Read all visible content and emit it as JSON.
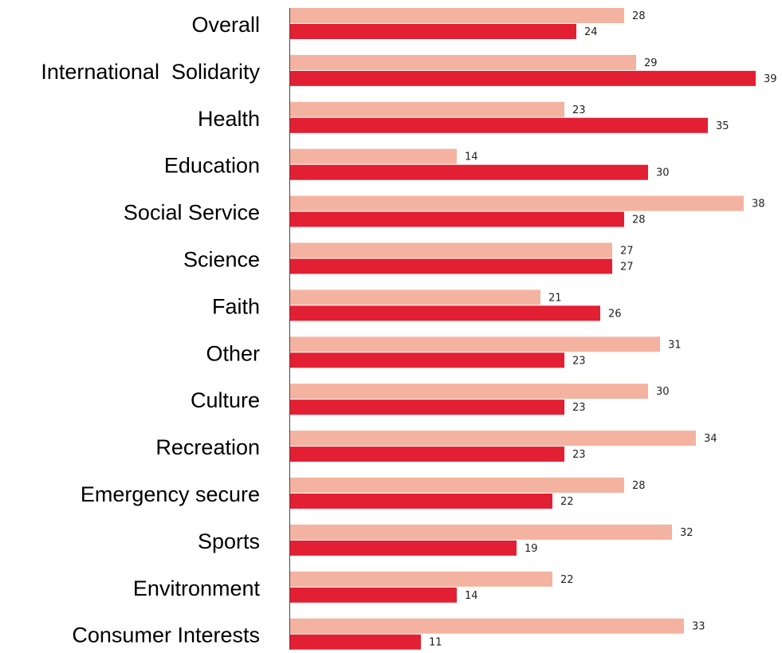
{
  "chart_data": {
    "type": "bar",
    "orientation": "horizontal",
    "categories": [
      "Overall",
      "International  Solidarity",
      "Health",
      "Education",
      "Social Service",
      "Science",
      "Faith",
      "Other",
      "Culture",
      "Recreation",
      "Emergency secure",
      "Sports",
      "Envitronment",
      "Consumer Interests"
    ],
    "series": [
      {
        "values": [
          28,
          29,
          23,
          14,
          38,
          27,
          21,
          31,
          30,
          34,
          28,
          32,
          22,
          33
        ],
        "color": "#f4b3a0"
      },
      {
        "values": [
          24,
          39,
          35,
          30,
          28,
          27,
          26,
          23,
          23,
          23,
          22,
          19,
          14,
          11
        ],
        "color": "#e31f33"
      }
    ],
    "xlim": [
      0,
      39
    ],
    "grid": false,
    "legend": "none"
  }
}
